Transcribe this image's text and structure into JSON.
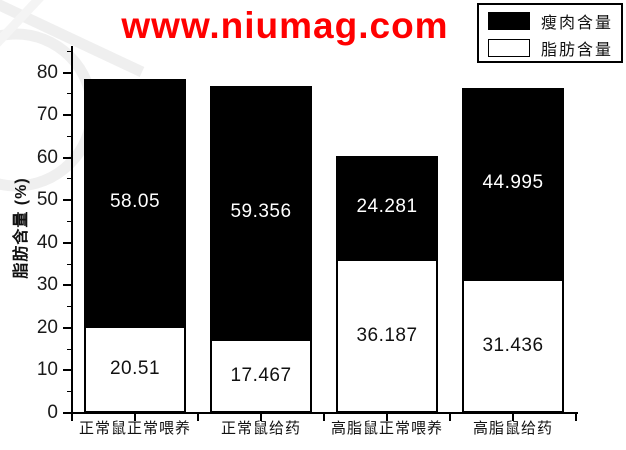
{
  "watermark": {
    "text": "www.niumag.com",
    "color": "#ff0000"
  },
  "chart_data": {
    "type": "bar",
    "stacked": true,
    "title": "",
    "xlabel": "",
    "ylabel": "脂肪含量 (%)",
    "categories": [
      "正常鼠正常喂养",
      "正常鼠给药",
      "高脂鼠正常喂养",
      "高脂鼠给药"
    ],
    "series": [
      {
        "name": "瘦肉含量",
        "color": "#000000",
        "label_color": "#ffffff",
        "values": [
          58.05,
          59.356,
          24.281,
          44.995
        ]
      },
      {
        "name": "脂肪含量",
        "color": "#ffffff",
        "label_color": "#000000",
        "values": [
          20.51,
          17.467,
          36.187,
          31.436
        ]
      }
    ],
    "stack_totals": [
      78.56,
      76.823,
      60.468,
      76.431
    ],
    "ylim": [
      0,
      86
    ],
    "yticks": [
      0,
      10,
      20,
      30,
      40,
      50,
      60,
      70,
      80
    ],
    "minor_ytick_step": 5,
    "grid": false,
    "bar_value_labels": true,
    "legend_position": "top-right"
  }
}
